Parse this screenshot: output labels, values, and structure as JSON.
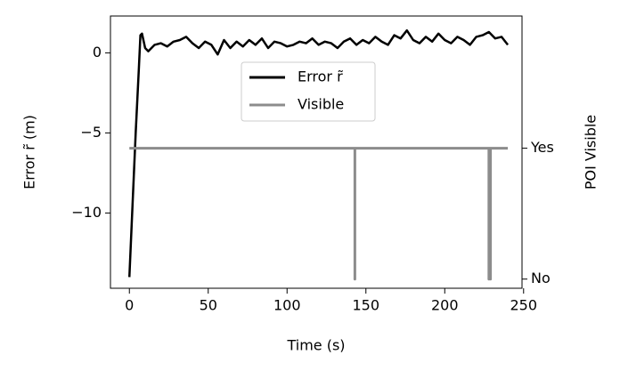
{
  "chart_data": {
    "type": "line",
    "xlabel": "Time (s)",
    "ylabel": "Error r̃ (m)",
    "y2label": "POI Visible",
    "xlim": [
      -12,
      249
    ],
    "xticks": [
      0,
      50,
      100,
      150,
      200,
      250
    ],
    "ylim": [
      -14.7,
      2.3
    ],
    "yticks": [
      {
        "value": -10,
        "label": "−10"
      },
      {
        "value": -5,
        "label": "−5"
      },
      0
    ],
    "y2lim": [
      -0.07,
      2.01
    ],
    "y2ticks": [
      {
        "value": 0,
        "label": "No"
      },
      {
        "value": 1,
        "label": "Yes"
      }
    ],
    "legend": "upper center",
    "series": [
      {
        "name": "Error r̃",
        "color": "#000000",
        "x": [
          0,
          2,
          4,
          6,
          7,
          8,
          10,
          12,
          16,
          20,
          24,
          28,
          32,
          36,
          40,
          44,
          48,
          52,
          56,
          60,
          64,
          68,
          72,
          76,
          80,
          84,
          88,
          92,
          96,
          100,
          104,
          108,
          112,
          116,
          120,
          124,
          128,
          132,
          136,
          140,
          144,
          148,
          152,
          156,
          160,
          164,
          168,
          172,
          176,
          180,
          184,
          188,
          192,
          196,
          200,
          204,
          208,
          212,
          216,
          220,
          224,
          228,
          232,
          236,
          240
        ],
        "values": [
          -14,
          -9.5,
          -5,
          -1,
          1.1,
          1.2,
          0.3,
          0.1,
          0.5,
          0.6,
          0.4,
          0.7,
          0.8,
          1.0,
          0.6,
          0.3,
          0.7,
          0.5,
          -0.1,
          0.8,
          0.3,
          0.7,
          0.4,
          0.8,
          0.5,
          0.9,
          0.3,
          0.7,
          0.6,
          0.4,
          0.5,
          0.7,
          0.6,
          0.9,
          0.5,
          0.7,
          0.6,
          0.3,
          0.7,
          0.9,
          0.5,
          0.8,
          0.6,
          1.0,
          0.7,
          0.5,
          1.1,
          0.9,
          1.4,
          0.8,
          0.6,
          1.0,
          0.7,
          1.2,
          0.8,
          0.6,
          1.0,
          0.8,
          0.5,
          1.0,
          1.1,
          1.3,
          0.9,
          1.0,
          0.5
        ]
      },
      {
        "name": "Visible",
        "color": "#8c8c8c",
        "axis": "y2",
        "x": [
          0,
          143,
          143,
          143,
          228,
          228,
          228,
          229,
          229,
          229,
          240
        ],
        "values": [
          1,
          1,
          0,
          1,
          1,
          0,
          1,
          1,
          0,
          1,
          1
        ]
      }
    ]
  }
}
